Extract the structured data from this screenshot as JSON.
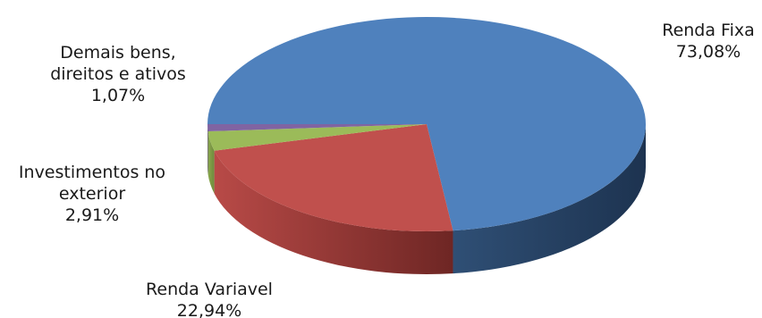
{
  "chart_data": {
    "type": "pie",
    "title": "",
    "style": "3d",
    "slices": [
      {
        "name": "Renda Fixa",
        "value": 73.08,
        "value_label": "73,08%",
        "color": "#4F81BD",
        "label_lines": [
          "Renda Fixa"
        ]
      },
      {
        "name": "Renda Variavel",
        "value": 22.94,
        "value_label": "22,94%",
        "color": "#C0504D",
        "label_lines": [
          "Renda Variavel"
        ]
      },
      {
        "name": "Investimentos no exterior",
        "value": 2.91,
        "value_label": "2,91%",
        "color": "#9BBB59",
        "label_lines": [
          "Investimentos no",
          "exterior"
        ]
      },
      {
        "name": "Demais bens, direitos e ativos",
        "value": 1.07,
        "value_label": "1,07%",
        "color": "#8064A2",
        "label_lines": [
          "Demais bens,",
          "direitos e ativos"
        ]
      }
    ]
  }
}
